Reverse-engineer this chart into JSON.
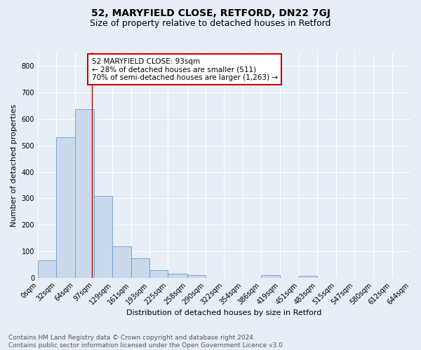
{
  "title": "52, MARYFIELD CLOSE, RETFORD, DN22 7GJ",
  "subtitle": "Size of property relative to detached houses in Retford",
  "xlabel": "Distribution of detached houses by size in Retford",
  "ylabel": "Number of detached properties",
  "bin_edges": [
    0,
    32,
    64,
    97,
    129,
    161,
    193,
    225,
    258,
    290,
    322,
    354,
    386,
    419,
    451,
    483,
    515,
    547,
    580,
    612,
    644
  ],
  "bin_labels": [
    "0sqm",
    "32sqm",
    "64sqm",
    "97sqm",
    "129sqm",
    "161sqm",
    "193sqm",
    "225sqm",
    "258sqm",
    "290sqm",
    "322sqm",
    "354sqm",
    "386sqm",
    "419sqm",
    "451sqm",
    "483sqm",
    "515sqm",
    "547sqm",
    "580sqm",
    "612sqm",
    "644sqm"
  ],
  "bar_heights": [
    65,
    530,
    635,
    310,
    120,
    75,
    30,
    15,
    10,
    0,
    0,
    0,
    10,
    0,
    8,
    0,
    0,
    0,
    0,
    0
  ],
  "bar_color": "#cad9ed",
  "bar_edge_color": "#6b9ec8",
  "property_line_x": 93,
  "annotation_text": "52 MARYFIELD CLOSE: 93sqm\n← 28% of detached houses are smaller (511)\n70% of semi-detached houses are larger (1,263) →",
  "annotation_box_color": "#ffffff",
  "annotation_box_edge": "#cc0000",
  "annotation_text_color": "#000000",
  "vline_color": "#cc0000",
  "ylim": [
    0,
    850
  ],
  "yticks": [
    0,
    100,
    200,
    300,
    400,
    500,
    600,
    700,
    800
  ],
  "footer_line1": "Contains HM Land Registry data © Crown copyright and database right 2024.",
  "footer_line2": "Contains public sector information licensed under the Open Government Licence v3.0.",
  "bg_color": "#e8eef5",
  "plot_bg_color": "#e8eef5",
  "grid_color": "#ffffff",
  "title_fontsize": 10,
  "subtitle_fontsize": 9,
  "axis_label_fontsize": 8,
  "tick_fontsize": 7,
  "annotation_fontsize": 7.5,
  "footer_fontsize": 6.5
}
